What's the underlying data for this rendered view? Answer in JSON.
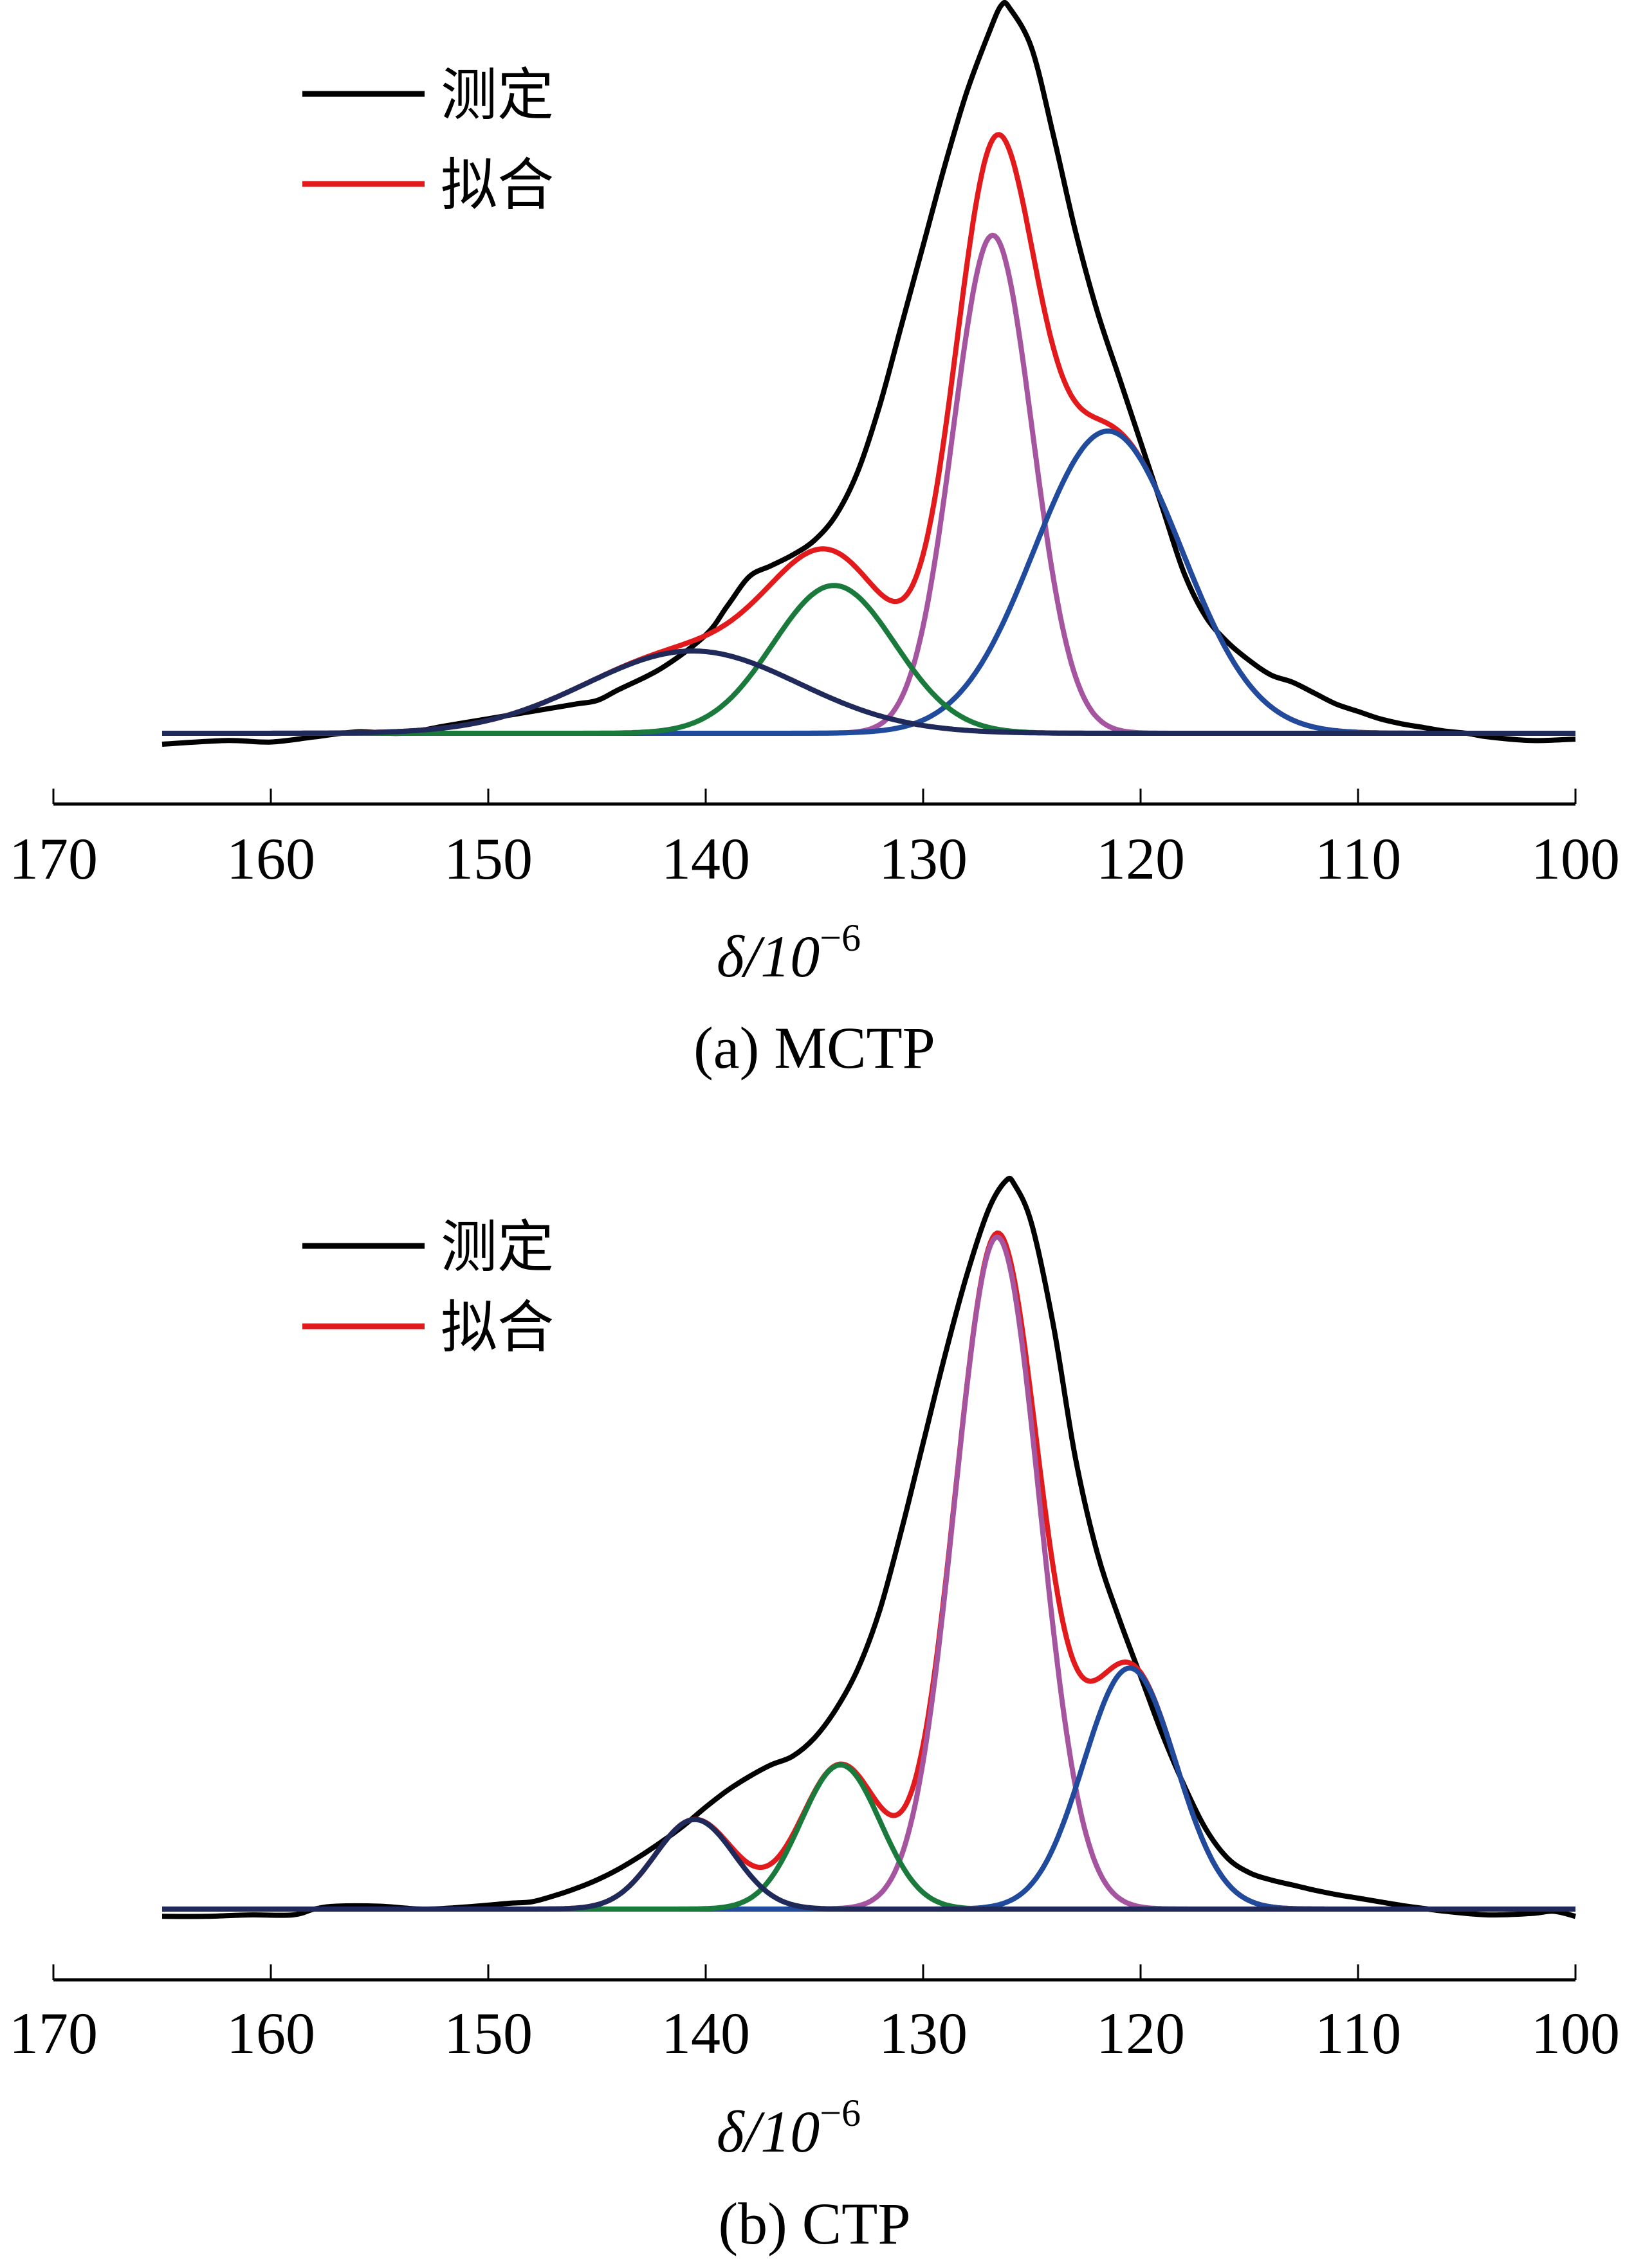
{
  "chart_data": [
    {
      "panel": "a",
      "type": "line",
      "caption": "(a)  MCTP",
      "xlabel": "δ/10",
      "xlabel_sup": "−6",
      "ylabel": "",
      "xlim": [
        170,
        100
      ],
      "x_reversed": true,
      "x_ticks": [
        170,
        160,
        150,
        140,
        130,
        120,
        110,
        100
      ],
      "y_axis_visible": false,
      "ylim": [
        0,
        100
      ],
      "legend": {
        "placement": "top-left",
        "entries": [
          {
            "label": "测定",
            "color": "#000000"
          },
          {
            "label": "拟合",
            "color": "#e31a1c"
          }
        ]
      },
      "x_range_plotted": [
        165,
        100
      ],
      "series": [
        {
          "name": "测定",
          "role": "measured",
          "color": "#000000",
          "points": [
            [
              165,
              -1.5
            ],
            [
              162,
              -1.0
            ],
            [
              160,
              -1.2
            ],
            [
              158,
              -0.5
            ],
            [
              156,
              0.2
            ],
            [
              154,
              0.0
            ],
            [
              152,
              1.0
            ],
            [
              150,
              2.0
            ],
            [
              148,
              3.0
            ],
            [
              146,
              4.0
            ],
            [
              145,
              4.5
            ],
            [
              144,
              6.0
            ],
            [
              142,
              9.0
            ],
            [
              140,
              13.5
            ],
            [
              139,
              17.5
            ],
            [
              138,
              21.5
            ],
            [
              137,
              23.0
            ],
            [
              136,
              24.5
            ],
            [
              135,
              26.5
            ],
            [
              134,
              30.0
            ],
            [
              133,
              36.0
            ],
            [
              132,
              45.0
            ],
            [
              131,
              56.0
            ],
            [
              130,
              67.0
            ],
            [
              129,
              78.0
            ],
            [
              128,
              88.0
            ],
            [
              127,
              96.0
            ],
            [
              126.4,
              100.0
            ],
            [
              126,
              99.5
            ],
            [
              125,
              94.0
            ],
            [
              124,
              82.0
            ],
            [
              123,
              69.0
            ],
            [
              122,
              58.0
            ],
            [
              121,
              49.0
            ],
            [
              120,
              40.0
            ],
            [
              119,
              31.0
            ],
            [
              118,
              22.0
            ],
            [
              117,
              16.0
            ],
            [
              116,
              12.5
            ],
            [
              115,
              10.0
            ],
            [
              114,
              8.0
            ],
            [
              113,
              7.0
            ],
            [
              112,
              5.5
            ],
            [
              111,
              4.0
            ],
            [
              110,
              3.0
            ],
            [
              109,
              2.0
            ],
            [
              108,
              1.3
            ],
            [
              107,
              0.8
            ],
            [
              106,
              0.3
            ],
            [
              105,
              0.0
            ],
            [
              104,
              -0.5
            ],
            [
              102,
              -1.0
            ],
            [
              100,
              -0.8
            ]
          ]
        },
        {
          "name": "拟合",
          "role": "fit",
          "color": "#e31a1c",
          "sum_of": [
            "peak1",
            "peak2",
            "peak3",
            "peak4"
          ]
        },
        {
          "name": "peak1",
          "role": "component",
          "color": "#1f2a5a",
          "center": 140.6,
          "height": 11.3,
          "fwhm": 11.5
        },
        {
          "name": "peak2",
          "role": "component",
          "color": "#197a3c",
          "center": 134.1,
          "height": 20.3,
          "fwhm": 6.6
        },
        {
          "name": "peak3",
          "role": "component",
          "color": "#a555a0",
          "center": 126.8,
          "height": 68.4,
          "fwhm": 4.3
        },
        {
          "name": "peak4",
          "role": "component",
          "color": "#204a9c",
          "center": 121.5,
          "height": 41.5,
          "fwhm": 8.0
        }
      ]
    },
    {
      "panel": "b",
      "type": "line",
      "caption": "(b)  CTP",
      "xlabel": "δ/10",
      "xlabel_sup": "−6",
      "ylabel": "",
      "xlim": [
        170,
        100
      ],
      "x_reversed": true,
      "x_ticks": [
        170,
        160,
        150,
        140,
        130,
        120,
        110,
        100
      ],
      "y_axis_visible": false,
      "ylim": [
        0,
        100
      ],
      "legend": {
        "placement": "top-left",
        "entries": [
          {
            "label": "测定",
            "color": "#000000"
          },
          {
            "label": "拟合",
            "color": "#e31a1c"
          }
        ]
      },
      "x_range_plotted": [
        165,
        100
      ],
      "series": [
        {
          "name": "测定",
          "role": "measured",
          "color": "#000000",
          "points": [
            [
              165,
              -1.0
            ],
            [
              163,
              -1.0
            ],
            [
              161,
              -0.8
            ],
            [
              159,
              -0.8
            ],
            [
              158,
              0.0
            ],
            [
              157,
              0.4
            ],
            [
              155,
              0.4
            ],
            [
              153,
              0.0
            ],
            [
              151,
              0.3
            ],
            [
              149,
              0.8
            ],
            [
              148,
              1.0
            ],
            [
              147,
              1.8
            ],
            [
              146,
              2.8
            ],
            [
              145,
              4.0
            ],
            [
              144,
              5.5
            ],
            [
              143,
              7.3
            ],
            [
              142,
              9.3
            ],
            [
              141,
              11.5
            ],
            [
              140,
              14.0
            ],
            [
              139,
              16.3
            ],
            [
              138,
              18.2
            ],
            [
              137,
              19.8
            ],
            [
              136,
              21.0
            ],
            [
              135,
              23.5
            ],
            [
              134,
              27.5
            ],
            [
              133,
              33.0
            ],
            [
              132,
              41.0
            ],
            [
              131,
              52.0
            ],
            [
              130,
              64.0
            ],
            [
              129,
              76.0
            ],
            [
              128,
              87.0
            ],
            [
              127,
              96.0
            ],
            [
              126.2,
              100.0
            ],
            [
              125.8,
              99.5
            ],
            [
              125,
              94.0
            ],
            [
              124,
              80.0
            ],
            [
              123,
              62.0
            ],
            [
              122,
              49.0
            ],
            [
              121,
              40.0
            ],
            [
              120,
              32.0
            ],
            [
              119,
              24.0
            ],
            [
              118,
              17.0
            ],
            [
              117,
              11.0
            ],
            [
              116,
              7.0
            ],
            [
              115,
              5.0
            ],
            [
              114,
              4.0
            ],
            [
              113,
              3.3
            ],
            [
              112,
              2.6
            ],
            [
              111,
              2.0
            ],
            [
              110,
              1.5
            ],
            [
              109,
              1.0
            ],
            [
              108,
              0.5
            ],
            [
              107,
              0.1
            ],
            [
              106,
              -0.3
            ],
            [
              104,
              -0.8
            ],
            [
              102,
              -0.6
            ],
            [
              101,
              -0.3
            ],
            [
              100,
              -1.0
            ]
          ]
        },
        {
          "name": "拟合",
          "role": "fit",
          "color": "#e31a1c",
          "sum_of": [
            "peak1",
            "peak2",
            "peak3",
            "peak4"
          ]
        },
        {
          "name": "peak1",
          "role": "component",
          "color": "#1f2a5a",
          "center": 140.5,
          "height": 12.3,
          "fwhm": 4.3
        },
        {
          "name": "peak2",
          "role": "component",
          "color": "#197a3c",
          "center": 133.8,
          "height": 19.8,
          "fwhm": 4.3
        },
        {
          "name": "peak3",
          "role": "component",
          "color": "#a555a0",
          "center": 126.6,
          "height": 92.3,
          "fwhm": 4.6
        },
        {
          "name": "peak4",
          "role": "component",
          "color": "#204a9c",
          "center": 120.5,
          "height": 33.1,
          "fwhm": 5.0
        }
      ]
    }
  ]
}
